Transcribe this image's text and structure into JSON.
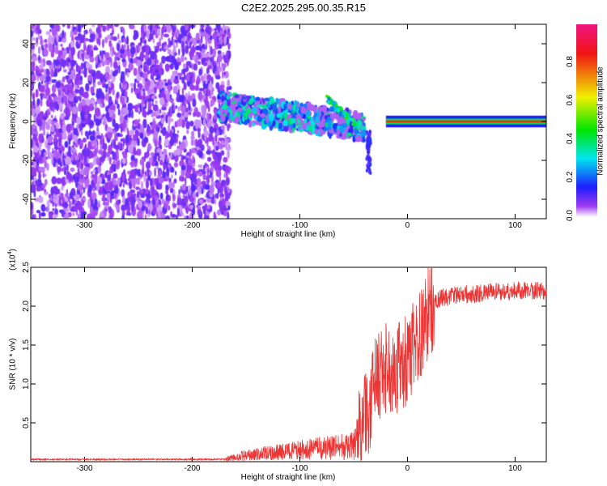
{
  "title": "C2E2.2025.295.00.35.R15",
  "chart_data": [
    {
      "type": "heatmap",
      "title": "C2E2.2025.295.00.35.R15",
      "xlabel": "Height of straight line (km)",
      "ylabel": "Frequency (Hz)",
      "xlim": [
        -350,
        129
      ],
      "ylim": [
        -50,
        50
      ],
      "xticks": [
        -300,
        -200,
        -100,
        0,
        100
      ],
      "xtick_labels": [
        "-300",
        "-200",
        "-100",
        "0",
        "100"
      ],
      "yticks": [
        -40,
        -20,
        0,
        20,
        40
      ],
      "ytick_labels": [
        "-40",
        "-20",
        "0",
        "20",
        "40"
      ],
      "colorbar": {
        "label": "Normalized spectral amplitude",
        "range": [
          0,
          1
        ],
        "ticks": [
          0.0,
          0.2,
          0.4,
          0.6,
          0.8
        ],
        "tick_labels": [
          "0.0",
          "0.2",
          "0.4",
          "0.6",
          "0.8"
        ]
      },
      "features": [
        {
          "region": "noise",
          "x_range": [
            -350,
            -165
          ],
          "freq_range": [
            -50,
            50
          ],
          "amplitude": 0.1
        },
        {
          "region": "spread_signal",
          "x_range": [
            -175,
            -40
          ],
          "freq_center": [
            8,
            -3
          ],
          "amplitude": 0.35
        },
        {
          "region": "tone",
          "x_range": [
            -20,
            129
          ],
          "freq": 0,
          "amplitude": 0.85
        }
      ]
    },
    {
      "type": "line",
      "xlabel": "Height of straight line (km)",
      "ylabel": "SNR (10 * v/v)",
      "yscale_label": "(x10",
      "yscale_exp": "4",
      "xlim": [
        -350,
        129
      ],
      "ylim": [
        0,
        2.5
      ],
      "xticks": [
        -300,
        -200,
        -100,
        0,
        100
      ],
      "xtick_labels": [
        "-300",
        "-200",
        "-100",
        "0",
        "100"
      ],
      "yticks": [
        0.5,
        1.0,
        1.5,
        2.0,
        2.5
      ],
      "ytick_labels": [
        "0.5",
        "1.0",
        "1.5",
        "2.0",
        "2.5"
      ],
      "series": [
        {
          "name": "SNR",
          "color": "#ee3333",
          "x": [
            -350,
            -170,
            -150,
            -100,
            -50,
            -40,
            -30,
            -20,
            -10,
            0,
            10,
            20,
            30,
            50,
            100,
            129
          ],
          "y": [
            0.03,
            0.03,
            0.08,
            0.15,
            0.2,
            0.5,
            1.0,
            1.2,
            1.2,
            1.3,
            1.6,
            1.95,
            2.1,
            2.15,
            2.2,
            2.2
          ]
        }
      ]
    }
  ]
}
